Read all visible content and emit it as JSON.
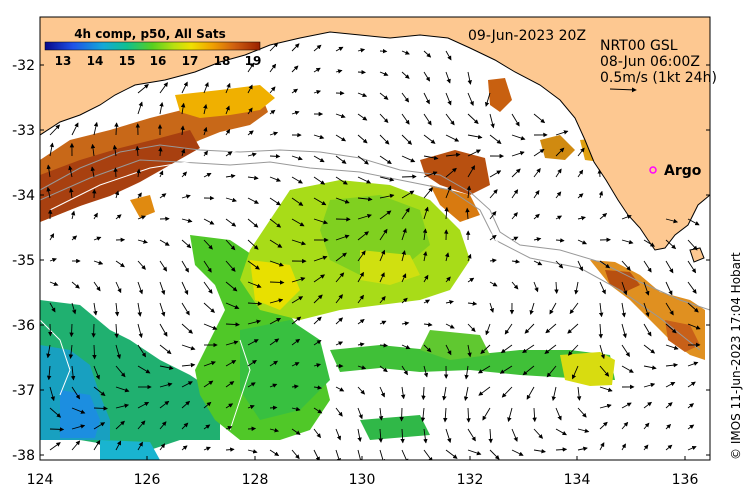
{
  "map": {
    "datetime": "09-Jun-2023 20Z",
    "lat_ticks": [
      "-32",
      "-33",
      "-34",
      "-35",
      "-36",
      "-37",
      "-38"
    ],
    "lon_ticks": [
      "124",
      "126",
      "128",
      "130",
      "132",
      "134",
      "136"
    ],
    "credit": "© IMOS 11-Jun-2023 17:04 Hobart",
    "colorbar": {
      "title": "4h comp, p50, All Sats",
      "ticks": [
        "13",
        "14",
        "15",
        "16",
        "17",
        "18",
        "19"
      ],
      "min": 12.5,
      "max": 19.5
    },
    "currents": {
      "source": "NRT00 GSL",
      "time": "08-Jun 06:00Z",
      "scale_label": "0.5m/s (1kt 24h)"
    },
    "argo": {
      "label": "Argo",
      "marker_color": "#ff00ff"
    },
    "colors": {
      "land": "#fdc891",
      "frame": "#000000",
      "isobath": "#999999"
    }
  }
}
